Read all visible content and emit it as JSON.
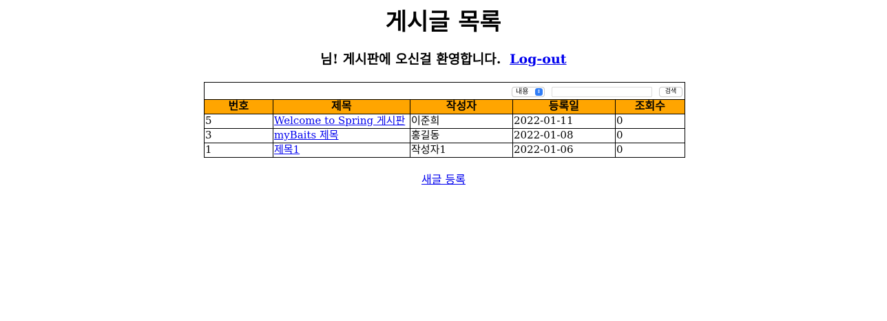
{
  "page": {
    "title": "게시글 목록",
    "welcome_text": "님! 게시판에 오신걸 환영합니다.",
    "logout_label": "Log-out"
  },
  "search": {
    "select_value": "내용",
    "input_value": "",
    "button_label": "검색"
  },
  "table": {
    "headers": [
      "번호",
      "제목",
      "작성자",
      "등록일",
      "조회수"
    ],
    "rows": [
      {
        "no": "5",
        "title": "Welcome to Spring 게시판",
        "writer": "이준희",
        "date": "2022-01-11",
        "views": "0"
      },
      {
        "no": "3",
        "title": "myBaits 제목",
        "writer": "홍길동",
        "date": "2022-01-08",
        "views": "0"
      },
      {
        "no": "1",
        "title": "제목1",
        "writer": "작성자1",
        "date": "2022-01-06",
        "views": "0"
      }
    ]
  },
  "footer": {
    "new_post_label": "새글 등록"
  },
  "colors": {
    "header_bg": "#ffa500",
    "link": "#0000ee"
  }
}
